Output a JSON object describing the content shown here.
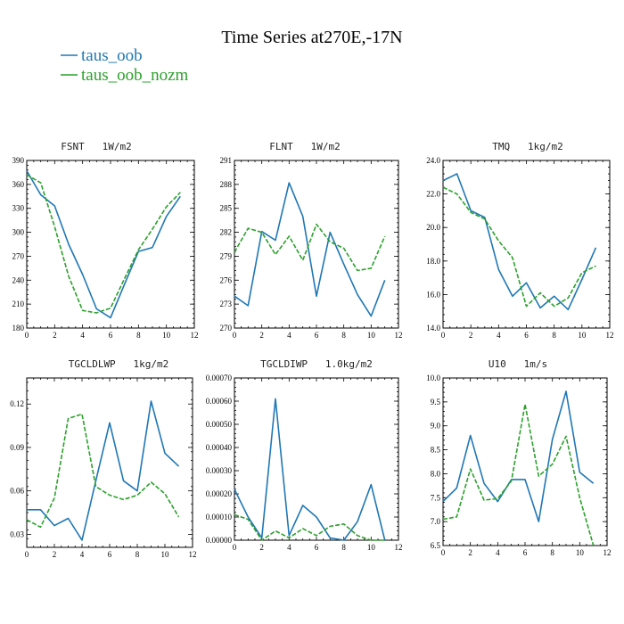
{
  "figure": {
    "title": "Time Series at270E,-17N",
    "legend": [
      {
        "label": "taus_oob",
        "color": "#1f77b4",
        "dash": "solid"
      },
      {
        "label": "taus_oob_nozm",
        "color": "#2ca02c",
        "dash": "dashed"
      }
    ]
  },
  "chart_data": [
    {
      "type": "line",
      "title": "FSNT   1W/m2",
      "x": [
        0,
        1,
        2,
        3,
        4,
        5,
        6,
        7,
        8,
        9,
        10,
        11
      ],
      "xlim": [
        0,
        12
      ],
      "xticks": [
        0,
        2,
        4,
        6,
        8,
        10,
        12
      ],
      "ylim": [
        180,
        390
      ],
      "yticks": [
        180,
        210,
        240,
        270,
        300,
        330,
        360,
        390
      ],
      "ytick_labels": [
        "180",
        "210",
        "240",
        "270",
        "300",
        "330",
        "360",
        "390"
      ],
      "series": [
        {
          "name": "taus_oob",
          "values": [
            377,
            347,
            333,
            285,
            247,
            204,
            193,
            235,
            276,
            281,
            320,
            345
          ]
        },
        {
          "name": "taus_oob_nozm",
          "values": [
            372,
            362,
            307,
            245,
            202,
            199,
            205,
            242,
            278,
            304,
            332,
            350
          ]
        }
      ]
    },
    {
      "type": "line",
      "title": "FLNT   1W/m2",
      "x": [
        0,
        1,
        2,
        3,
        4,
        5,
        6,
        7,
        8,
        9,
        10,
        11
      ],
      "xlim": [
        0,
        12
      ],
      "xticks": [
        0,
        2,
        4,
        6,
        8,
        10,
        12
      ],
      "ylim": [
        270,
        291
      ],
      "yticks": [
        270,
        273,
        276,
        279,
        282,
        285,
        288,
        291
      ],
      "ytick_labels": [
        "270",
        "273",
        "276",
        "279",
        "282",
        "285",
        "288",
        "291"
      ],
      "series": [
        {
          "name": "taus_oob",
          "values": [
            274.0,
            272.8,
            282.1,
            281.0,
            288.2,
            284.0,
            274.0,
            282.0,
            278.0,
            274.2,
            271.5,
            276.0
          ]
        },
        {
          "name": "taus_oob_nozm",
          "values": [
            279.5,
            282.5,
            282.0,
            279.2,
            281.5,
            278.5,
            283.0,
            280.8,
            280.0,
            277.2,
            277.5,
            281.5
          ]
        }
      ]
    },
    {
      "type": "line",
      "title": "TMQ   1kg/m2",
      "x": [
        0,
        1,
        2,
        3,
        4,
        5,
        6,
        7,
        8,
        9,
        10,
        11
      ],
      "xlim": [
        0,
        12
      ],
      "xticks": [
        0,
        2,
        4,
        6,
        8,
        10,
        12
      ],
      "ylim": [
        14.0,
        24.0
      ],
      "yticks": [
        14,
        16,
        18,
        20,
        22,
        24
      ],
      "ytick_labels": [
        "14.0",
        "16.0",
        "18.0",
        "20.0",
        "22.0",
        "24.0"
      ],
      "series": [
        {
          "name": "taus_oob",
          "values": [
            22.8,
            23.2,
            21.0,
            20.6,
            17.5,
            15.9,
            16.7,
            15.2,
            15.9,
            15.1,
            16.9,
            18.8
          ]
        },
        {
          "name": "taus_oob_nozm",
          "values": [
            22.4,
            22.0,
            20.9,
            20.5,
            19.2,
            18.2,
            15.3,
            16.1,
            15.3,
            15.8,
            17.3,
            17.7
          ]
        }
      ]
    },
    {
      "type": "line",
      "title": "TGCLDLWP   1kg/m2",
      "x": [
        0,
        1,
        2,
        3,
        4,
        5,
        6,
        7,
        8,
        9,
        10,
        11
      ],
      "xlim": [
        0,
        12
      ],
      "xticks": [
        0,
        2,
        4,
        6,
        8,
        10,
        12
      ],
      "ylim": [
        0.021,
        0.138
      ],
      "yticks": [
        0.03,
        0.06,
        0.09,
        0.12
      ],
      "ytick_labels": [
        "0.03",
        "0.06",
        "0.09",
        "0.12"
      ],
      "series": [
        {
          "name": "taus_oob",
          "values": [
            0.047,
            0.047,
            0.036,
            0.041,
            0.026,
            0.067,
            0.107,
            0.067,
            0.06,
            0.122,
            0.086,
            0.077
          ]
        },
        {
          "name": "taus_oob_nozm",
          "values": [
            0.04,
            0.035,
            0.055,
            0.11,
            0.113,
            0.063,
            0.057,
            0.054,
            0.057,
            0.066,
            0.058,
            0.042
          ]
        }
      ]
    },
    {
      "type": "line",
      "title": "TGCLDIWP   1.0kg/m2",
      "x": [
        0,
        1,
        2,
        3,
        4,
        5,
        6,
        7,
        8,
        9,
        10,
        11
      ],
      "xlim": [
        0,
        12
      ],
      "xticks": [
        0,
        2,
        4,
        6,
        8,
        10,
        12
      ],
      "ylim": [
        0,
        0.0007
      ],
      "yticks": [
        0,
        0.0001,
        0.0002,
        0.0003,
        0.0004,
        0.0005,
        0.0006,
        0.0007
      ],
      "ytick_labels": [
        "0.00000",
        "0.00010",
        "0.00020",
        "0.00030",
        "0.00040",
        "0.00050",
        "0.00060",
        "0.00070"
      ],
      "series": [
        {
          "name": "taus_oob",
          "values": [
            0.00022,
            0.0001,
            1e-05,
            0.00061,
            2e-05,
            0.00015,
            0.0001,
            1e-05,
            0.0,
            8e-05,
            0.00024,
            0.0
          ]
        },
        {
          "name": "taus_oob_nozm",
          "values": [
            0.00011,
            9e-05,
            0.0,
            4e-05,
            1e-05,
            5e-05,
            2e-05,
            6e-05,
            7e-05,
            2e-05,
            0.0,
            0.0
          ]
        }
      ]
    },
    {
      "type": "line",
      "title": "U10   1m/s",
      "x": [
        0,
        1,
        2,
        3,
        4,
        5,
        6,
        7,
        8,
        9,
        10,
        11
      ],
      "xlim": [
        0,
        12
      ],
      "xticks": [
        0,
        2,
        4,
        6,
        8,
        10,
        12
      ],
      "ylim": [
        6.5,
        10.0
      ],
      "yticks": [
        6.5,
        7.0,
        7.5,
        8.0,
        8.5,
        9.0,
        9.5,
        10.0
      ],
      "ytick_labels": [
        "6.5",
        "7.0",
        "7.5",
        "8.0",
        "8.5",
        "9.0",
        "9.5",
        "10.0"
      ],
      "series": [
        {
          "name": "taus_oob",
          "values": [
            7.42,
            7.7,
            8.8,
            7.8,
            7.42,
            7.88,
            7.88,
            7.0,
            8.72,
            9.72,
            8.03,
            7.8
          ]
        },
        {
          "name": "taus_oob_nozm",
          "values": [
            7.05,
            7.1,
            8.1,
            7.45,
            7.48,
            7.85,
            9.45,
            7.95,
            8.2,
            8.78,
            7.5,
            6.5
          ]
        }
      ]
    }
  ]
}
